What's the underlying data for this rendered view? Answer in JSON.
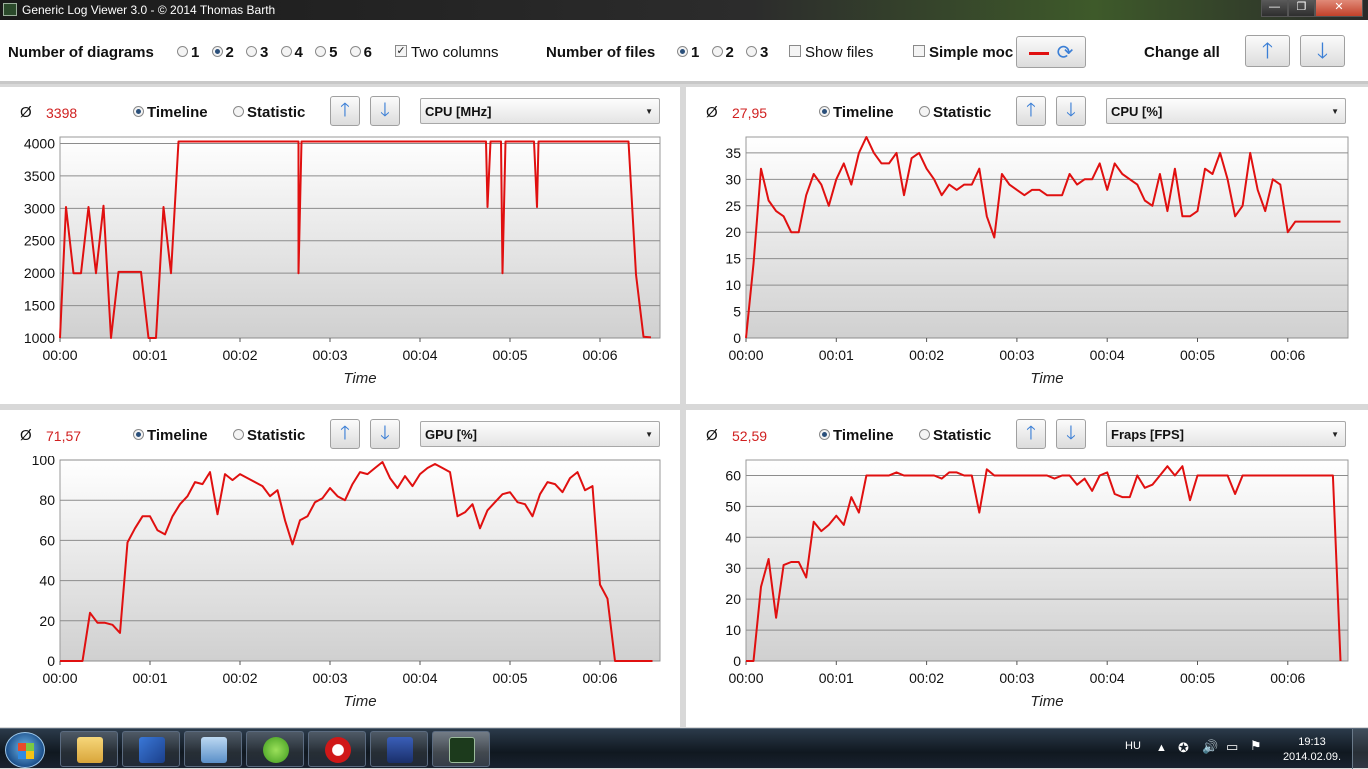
{
  "window": {
    "title": "Generic Log Viewer 3.0 - © 2014 Thomas Barth",
    "minimize_label": "—",
    "maximize_label": "❐",
    "close_label": "✕"
  },
  "toolbar": {
    "num_diagrams_label": "Number of diagrams",
    "diagram_options": [
      "1",
      "2",
      "3",
      "4",
      "5",
      "6"
    ],
    "diagram_selected": "2",
    "two_columns_label": "Two columns",
    "two_columns_checked": true,
    "num_files_label": "Number of files",
    "file_options": [
      "1",
      "2",
      "3"
    ],
    "file_selected": "1",
    "show_files_label": "Show files",
    "show_files_checked": false,
    "simple_mode_label": "Simple moc",
    "simple_mode_checked": false,
    "change_all_label": "Change all"
  },
  "panels": [
    {
      "avg_symbol": "Ø",
      "avg_value": "3398",
      "timeline_label": "Timeline",
      "statistic_label": "Statistic",
      "mode_selected": "timeline",
      "combo_value": "CPU [MHz]"
    },
    {
      "avg_symbol": "Ø",
      "avg_value": "27,95",
      "timeline_label": "Timeline",
      "statistic_label": "Statistic",
      "mode_selected": "timeline",
      "combo_value": "CPU [%]"
    },
    {
      "avg_symbol": "Ø",
      "avg_value": "71,57",
      "timeline_label": "Timeline",
      "statistic_label": "Statistic",
      "mode_selected": "timeline",
      "combo_value": "GPU [%]"
    },
    {
      "avg_symbol": "Ø",
      "avg_value": "52,59",
      "timeline_label": "Timeline",
      "statistic_label": "Statistic",
      "mode_selected": "timeline",
      "combo_value": "Fraps [FPS]"
    }
  ],
  "chart_data": [
    {
      "type": "line",
      "xlabel": "Time",
      "ylabel": "",
      "x_unit": "seconds",
      "xlim": [
        0,
        400
      ],
      "ylim": [
        1000,
        4100
      ],
      "yticks": [
        1000,
        1500,
        2000,
        2500,
        3000,
        3500,
        4000
      ],
      "xticks": [
        "00:00",
        "00:01",
        "00:02",
        "00:03",
        "00:04",
        "00:05",
        "00:06"
      ],
      "grid": true,
      "series_color": "#e01010",
      "x": [
        0,
        4,
        9,
        14,
        19,
        24,
        29,
        34,
        39,
        44,
        49,
        54,
        59,
        64,
        69,
        74,
        79,
        84,
        89,
        94,
        99,
        104,
        109,
        114,
        119,
        124,
        129,
        134,
        139,
        144,
        149,
        154,
        159,
        164,
        169,
        174,
        179,
        184,
        189,
        194,
        199,
        204,
        209,
        214,
        219,
        224,
        229,
        234,
        239,
        244,
        249,
        254,
        259,
        264,
        269,
        274,
        279,
        284,
        289,
        294,
        299,
        304,
        309,
        314,
        319,
        324,
        329,
        334,
        339,
        344,
        349,
        354,
        359,
        364,
        369,
        374,
        379,
        384,
        389,
        394
      ],
      "values": [
        1000,
        3020,
        2000,
        2000,
        3020,
        2000,
        3040,
        1000,
        2020,
        2020,
        2020,
        2020,
        1000,
        1000,
        3020,
        2000,
        4030,
        4030,
        4030,
        4030,
        4030,
        4030,
        4030,
        4030,
        4030,
        4030,
        4030,
        4030,
        4030,
        4030,
        4030,
        4030,
        4030,
        4030,
        4030,
        4030,
        4030,
        4030,
        4030,
        4030,
        4030,
        4030,
        4030,
        4030,
        4030,
        4030,
        4030,
        4030,
        4030,
        4030,
        4030,
        4030,
        4030,
        4030,
        4030,
        4030,
        4030,
        4030,
        4030,
        4030,
        4030,
        4030,
        4030,
        4030,
        4030,
        4030,
        4030,
        4030,
        4030,
        4030,
        4030,
        4030,
        4030,
        4030,
        4030,
        4030,
        4030,
        1980,
        1020,
        1010
      ],
      "dips": [
        {
          "x": 159,
          "value": 2000
        },
        {
          "x": 285,
          "value": 3020
        },
        {
          "x": 295,
          "value": 2000
        },
        {
          "x": 318,
          "value": 3020
        }
      ]
    },
    {
      "type": "line",
      "xlabel": "Time",
      "ylabel": "",
      "x_unit": "seconds",
      "xlim": [
        0,
        400
      ],
      "ylim": [
        0,
        38
      ],
      "yticks": [
        0,
        5,
        10,
        15,
        20,
        25,
        30,
        35
      ],
      "xticks": [
        "00:00",
        "00:01",
        "00:02",
        "00:03",
        "00:04",
        "00:05",
        "00:06"
      ],
      "grid": true,
      "series_color": "#e01010",
      "x": [
        0,
        5,
        10,
        15,
        20,
        25,
        30,
        35,
        40,
        45,
        50,
        55,
        60,
        65,
        70,
        75,
        80,
        85,
        90,
        95,
        100,
        105,
        110,
        115,
        120,
        125,
        130,
        135,
        140,
        145,
        150,
        155,
        160,
        165,
        170,
        175,
        180,
        185,
        190,
        195,
        200,
        205,
        210,
        215,
        220,
        225,
        230,
        235,
        240,
        245,
        250,
        255,
        260,
        265,
        270,
        275,
        280,
        285,
        290,
        295,
        300,
        305,
        310,
        315,
        320,
        325,
        330,
        335,
        340,
        345,
        350,
        355,
        360,
        365,
        370,
        375,
        380,
        385,
        390,
        395
      ],
      "values": [
        0,
        14,
        32,
        26,
        24,
        23,
        20,
        20,
        27,
        31,
        29,
        25,
        30,
        33,
        29,
        35,
        39,
        35,
        33,
        33,
        35,
        27,
        34,
        35,
        32,
        30,
        27,
        29,
        28,
        29,
        29,
        32,
        23,
        19,
        31,
        29,
        28,
        27,
        28,
        28,
        27,
        27,
        27,
        31,
        29,
        30,
        30,
        33,
        28,
        33,
        31,
        30,
        29,
        26,
        25,
        31,
        24,
        32,
        23,
        23,
        24,
        32,
        31,
        35,
        30,
        23,
        25,
        35,
        28,
        24,
        30,
        29,
        20,
        22,
        22,
        22,
        22,
        22,
        22,
        22
      ]
    },
    {
      "type": "line",
      "xlabel": "Time",
      "ylabel": "",
      "x_unit": "seconds",
      "xlim": [
        0,
        400
      ],
      "ylim": [
        0,
        100
      ],
      "yticks": [
        0,
        20,
        40,
        60,
        80,
        100
      ],
      "xticks": [
        "00:00",
        "00:01",
        "00:02",
        "00:03",
        "00:04",
        "00:05",
        "00:06"
      ],
      "grid": true,
      "series_color": "#e01010",
      "x": [
        0,
        5,
        10,
        15,
        20,
        25,
        30,
        35,
        40,
        45,
        50,
        55,
        60,
        65,
        70,
        75,
        80,
        85,
        90,
        95,
        100,
        105,
        110,
        115,
        120,
        125,
        130,
        135,
        140,
        145,
        150,
        155,
        160,
        165,
        170,
        175,
        180,
        185,
        190,
        195,
        200,
        205,
        210,
        215,
        220,
        225,
        230,
        235,
        240,
        245,
        250,
        255,
        260,
        265,
        270,
        275,
        280,
        285,
        290,
        295,
        300,
        305,
        310,
        315,
        320,
        325,
        330,
        335,
        340,
        345,
        350,
        355,
        360,
        365,
        370,
        375,
        380,
        385,
        390,
        395
      ],
      "values": [
        0,
        0,
        0,
        0,
        24,
        19,
        19,
        18,
        14,
        59,
        66,
        72,
        72,
        65,
        63,
        72,
        78,
        82,
        89,
        88,
        94,
        73,
        93,
        90,
        93,
        91,
        89,
        87,
        82,
        85,
        70,
        58,
        70,
        72,
        79,
        81,
        86,
        82,
        80,
        88,
        94,
        93,
        96,
        99,
        91,
        86,
        92,
        87,
        93,
        96,
        98,
        96,
        94,
        72,
        74,
        78,
        66,
        75,
        79,
        83,
        84,
        79,
        78,
        72,
        83,
        89,
        88,
        84,
        91,
        94,
        85,
        87,
        38,
        31,
        0,
        0,
        0,
        0,
        0,
        0
      ]
    },
    {
      "type": "line",
      "xlabel": "Time",
      "ylabel": "",
      "x_unit": "seconds",
      "xlim": [
        0,
        400
      ],
      "ylim": [
        0,
        65
      ],
      "yticks": [
        0,
        10,
        20,
        30,
        40,
        50,
        60
      ],
      "xticks": [
        "00:00",
        "00:01",
        "00:02",
        "00:03",
        "00:04",
        "00:05",
        "00:06"
      ],
      "grid": true,
      "series_color": "#e01010",
      "x": [
        0,
        5,
        10,
        15,
        20,
        25,
        30,
        35,
        40,
        45,
        50,
        55,
        60,
        65,
        70,
        75,
        80,
        85,
        90,
        95,
        100,
        105,
        110,
        115,
        120,
        125,
        130,
        135,
        140,
        145,
        150,
        155,
        160,
        165,
        170,
        175,
        180,
        185,
        190,
        195,
        200,
        205,
        210,
        215,
        220,
        225,
        230,
        235,
        240,
        245,
        250,
        255,
        260,
        265,
        270,
        275,
        280,
        285,
        290,
        295,
        300,
        305,
        310,
        315,
        320,
        325,
        330,
        335,
        340,
        345,
        350,
        355,
        360,
        365,
        370,
        375,
        380,
        385,
        390,
        395
      ],
      "values": [
        0,
        0,
        24,
        33,
        14,
        31,
        32,
        32,
        27,
        45,
        42,
        44,
        47,
        44,
        53,
        48,
        60,
        60,
        60,
        60,
        61,
        60,
        60,
        60,
        60,
        60,
        59,
        61,
        61,
        60,
        60,
        48,
        62,
        60,
        60,
        60,
        60,
        60,
        60,
        60,
        60,
        59,
        60,
        60,
        57,
        59,
        55,
        60,
        61,
        54,
        53,
        53,
        60,
        56,
        57,
        60,
        63,
        60,
        63,
        52,
        60,
        60,
        60,
        60,
        60,
        54,
        60,
        60,
        60,
        60,
        60,
        60,
        60,
        60,
        60,
        60,
        60,
        60,
        60,
        0
      ]
    }
  ],
  "taskbar": {
    "language": "HU",
    "time": "19:13",
    "date": "2014.02.09.",
    "apps": [
      "explorer-icon",
      "windows-update-icon",
      "control-panel-icon",
      "utorrent-icon",
      "opera-icon",
      "save-app-icon",
      "log-viewer-icon"
    ]
  }
}
